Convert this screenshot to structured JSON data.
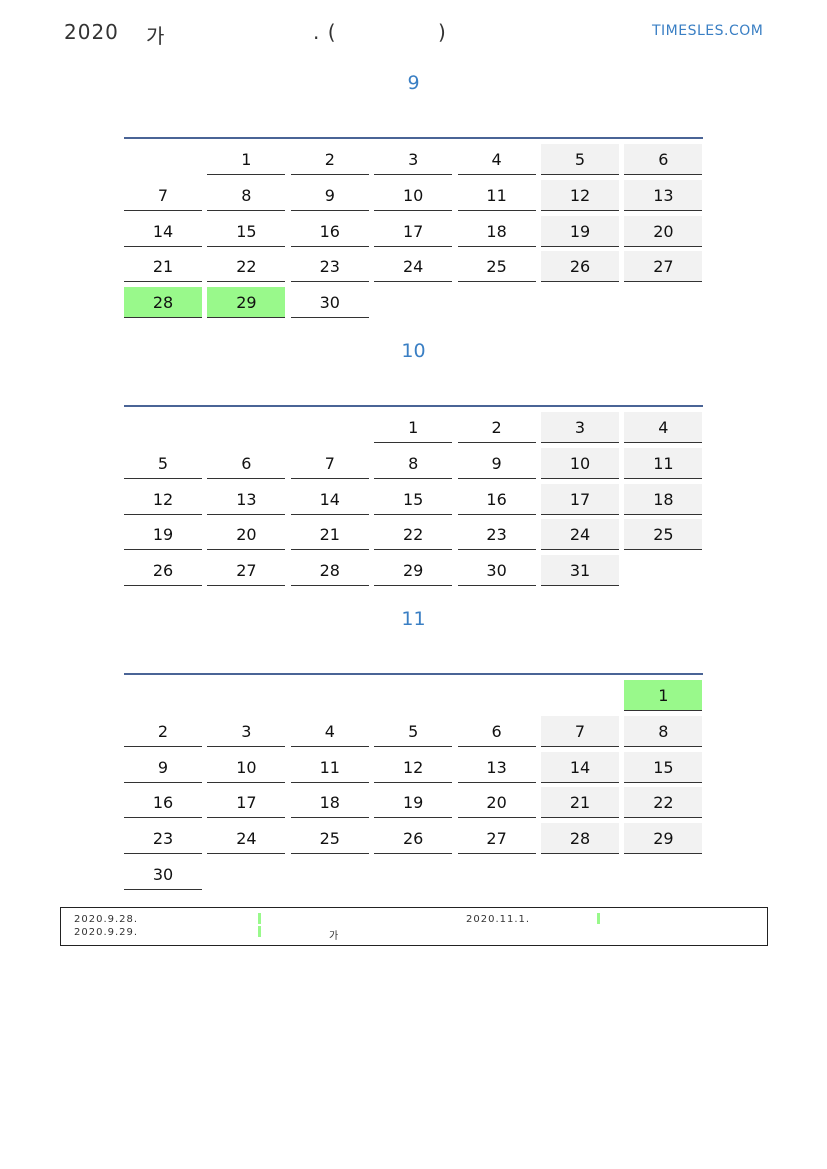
{
  "header": {
    "year": "2020",
    "title_char": "가",
    "punct_open": ". (",
    "punct_close": ")",
    "logo": "TIMESLES.COM"
  },
  "colors": {
    "accent": "#3a7fc4",
    "holiday": "#99f98b",
    "weekend": "#f2f2f2",
    "rule": "#4a6496"
  },
  "months": [
    {
      "label": "9",
      "offset": 1,
      "days": 30,
      "holidays": [
        28,
        29
      ]
    },
    {
      "label": "10",
      "offset": 3,
      "days": 31,
      "holidays": []
    },
    {
      "label": "11",
      "offset": 6,
      "days": 30,
      "holidays": [
        1
      ]
    }
  ],
  "legend": {
    "items": [
      {
        "date": "2020.9.28.",
        "name": ""
      },
      {
        "date": "2020.9.29.",
        "name": "가"
      },
      {
        "date": "2020.11.1.",
        "name": ""
      }
    ]
  }
}
